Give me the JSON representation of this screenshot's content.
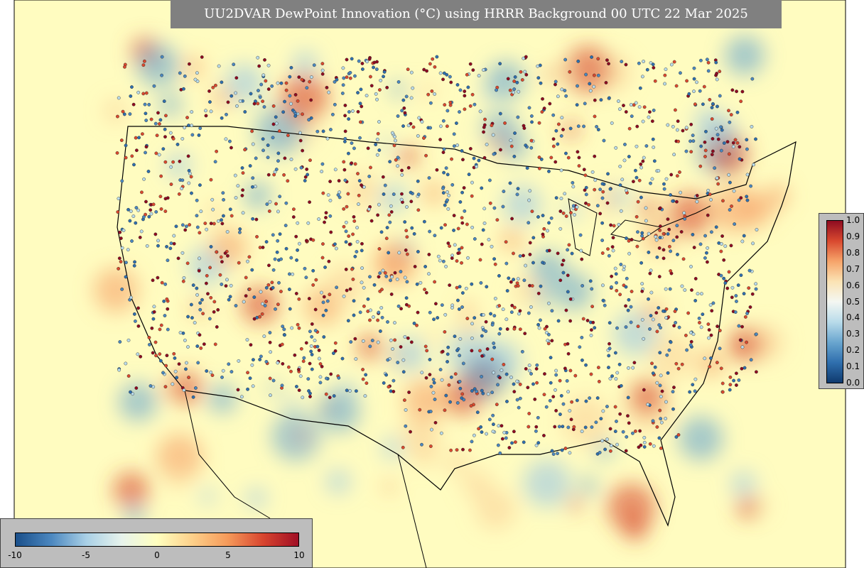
{
  "header": {
    "title": "UU2DVAR DewPoint Innovation (°C) using HRRR Background 00 UTC 22 Mar 2025"
  },
  "right_colorbar": {
    "ticks": [
      "0.0",
      "0.1",
      "0.2",
      "0.3",
      "0.4",
      "0.5",
      "0.6",
      "0.7",
      "0.8",
      "0.9",
      "1.0"
    ]
  },
  "bottom_colorbar": {
    "ticks": [
      "-10",
      "-5",
      "0",
      "5",
      "10"
    ]
  }
}
